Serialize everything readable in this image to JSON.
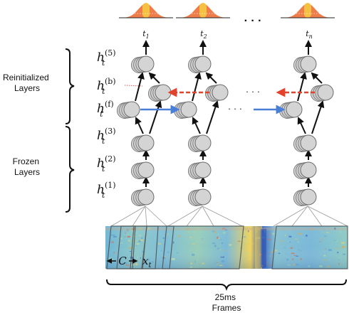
{
  "left_labels": {
    "reinitialized": [
      "Reinitialized",
      "Layers"
    ],
    "frozen": [
      "Frozen",
      "Layers"
    ]
  },
  "layer_labels": [
    {
      "base": "h",
      "sub": "t",
      "sup": "(5)"
    },
    {
      "base": "h",
      "sub": "t",
      "sup": "(b)"
    },
    {
      "base": "h",
      "sub": "t",
      "sup": "(f)"
    },
    {
      "base": "h",
      "sub": "t",
      "sup": "(3)"
    },
    {
      "base": "h",
      "sub": "t",
      "sup": "(2)"
    },
    {
      "base": "h",
      "sub": "t",
      "sup": "(1)"
    }
  ],
  "time_labels": [
    {
      "base": "t",
      "sub": "1"
    },
    {
      "base": "t",
      "sub": "2"
    },
    {
      "base": "t",
      "sub": "n"
    }
  ],
  "ellipsis": "· · ·",
  "context_label": "C",
  "input_label": {
    "base": "x",
    "sub": "t"
  },
  "bottom_label": [
    "25ms",
    "Frames"
  ],
  "colors": {
    "distribution_fill": "#ef7d4a",
    "distribution_highlight": "#f4c542",
    "forward_arrow": "#4a7fd8",
    "backward_arrow": "#e2432c",
    "node_fill": "#cfcfcf",
    "dotted_connector": "#e06060"
  }
}
